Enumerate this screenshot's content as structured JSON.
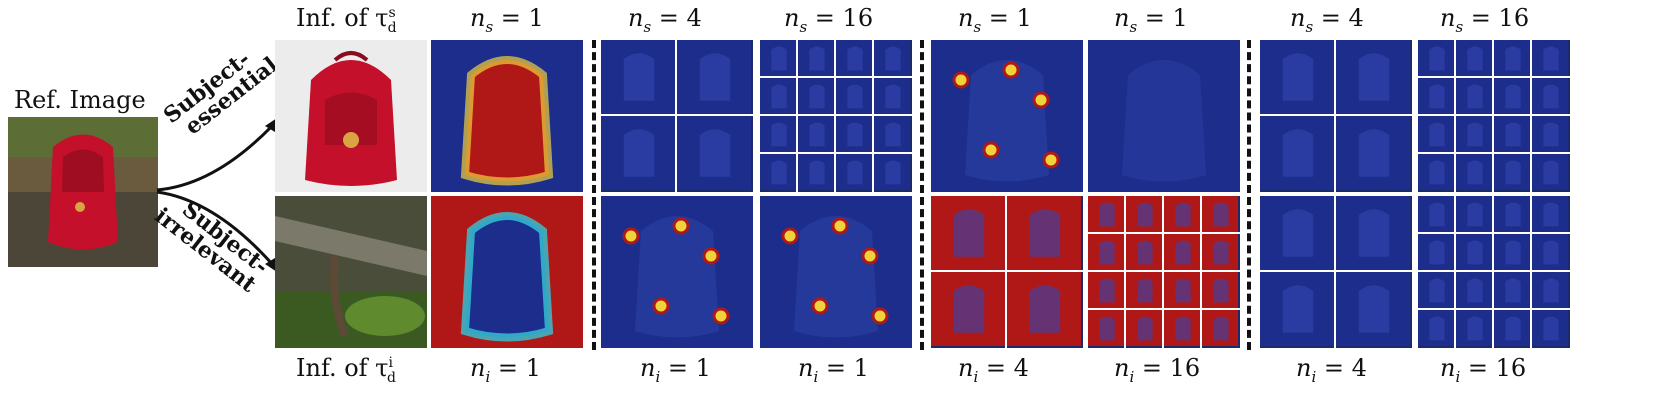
{
  "ref_label": "Ref. Image",
  "arrow_top_label_1": "Subject-",
  "arrow_top_label_2": "essential",
  "arrow_bottom_label_1": "Subject-",
  "arrow_bottom_label_2": "irrelevant",
  "inf_s_label": "Inf. of τ",
  "inf_s_sup": "s",
  "inf_s_sub": "d",
  "inf_i_label": "Inf. of τ",
  "inf_i_sup": "i",
  "inf_i_sub": "d",
  "top_labels": [
    "n_s = 1",
    "n_s = 4",
    "n_s = 16",
    "n_s = 1",
    "n_s = 1",
    "n_s = 4",
    "n_s = 16"
  ],
  "bottom_labels": [
    "n_i = 1",
    "n_i = 1",
    "n_i = 1",
    "n_i = 4",
    "n_i = 16",
    "n_i = 4",
    "n_i = 16"
  ],
  "top_var": "n",
  "top_sub": "s",
  "bottom_var": "n",
  "bottom_sub": "i",
  "top_values": [
    "1",
    "4",
    "16",
    "1",
    "1",
    "4",
    "16"
  ],
  "bottom_values": [
    "1",
    "1",
    "1",
    "4",
    "16",
    "4",
    "16"
  ],
  "colors": {
    "heat_red": "#b01818",
    "heat_blue": "#1c2d8c",
    "bag_red": "#c4102a",
    "text": "#111111"
  }
}
